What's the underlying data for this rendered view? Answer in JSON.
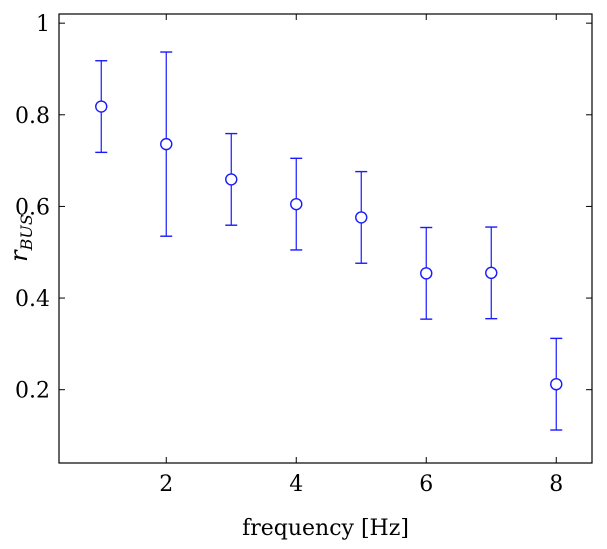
{
  "chart_data": {
    "type": "scatter",
    "title": "",
    "xlabel": "frequency [Hz]",
    "ylabel_main": "r",
    "ylabel_subscript": "BUS",
    "xlim": [
      0.35,
      8.55
    ],
    "ylim": [
      0.04,
      1.02
    ],
    "xticks": [
      2,
      4,
      6,
      8
    ],
    "yticks": [
      0.2,
      0.4,
      0.6,
      0.8,
      1
    ],
    "xtick_labels": [
      "2",
      "4",
      "6",
      "8"
    ],
    "ytick_labels": [
      "0.2",
      "0.4",
      "0.6",
      "0.8",
      "1"
    ],
    "grid": false,
    "marker": "open-circle",
    "color": "#1a1aff",
    "series": [
      {
        "x": [
          1,
          2,
          3,
          4,
          5,
          6,
          7,
          8
        ],
        "y": [
          0.818,
          0.736,
          0.659,
          0.605,
          0.576,
          0.454,
          0.455,
          0.212
        ],
        "yerr_low": [
          0.718,
          0.535,
          0.559,
          0.505,
          0.476,
          0.354,
          0.355,
          0.112
        ],
        "yerr_high": [
          0.918,
          0.937,
          0.759,
          0.705,
          0.676,
          0.554,
          0.555,
          0.312
        ]
      }
    ]
  }
}
